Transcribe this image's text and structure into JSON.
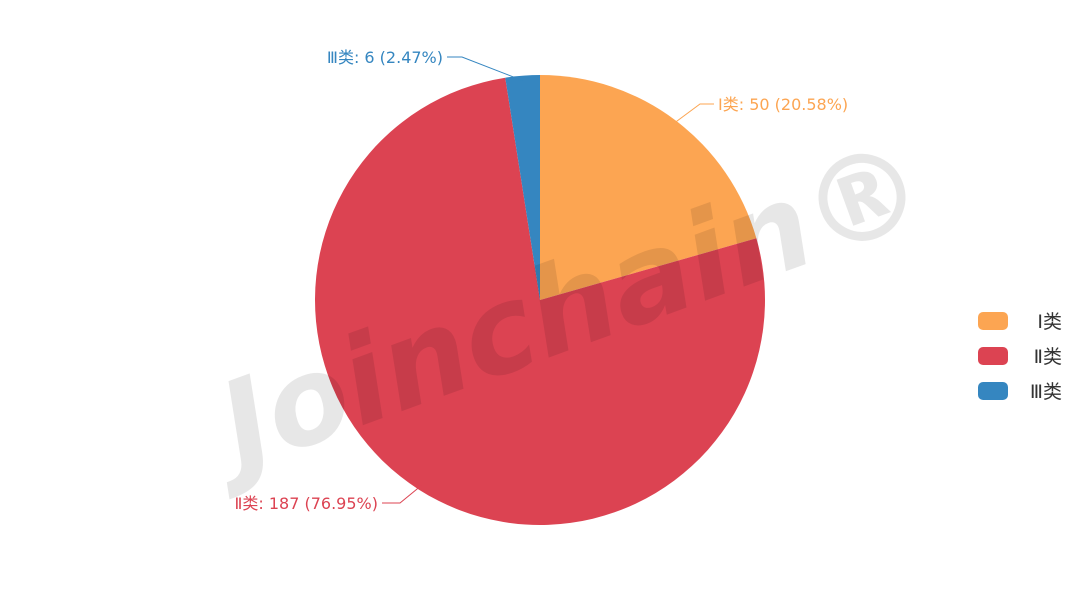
{
  "watermark": "Joinchain®",
  "chart_data": {
    "type": "pie",
    "title": "",
    "categories": [
      "Ⅰ类",
      "Ⅱ类",
      "Ⅲ类"
    ],
    "values": [
      50,
      187,
      6
    ],
    "percentages": [
      20.58,
      76.95,
      2.47
    ],
    "labels": [
      "Ⅰ类: 50 (20.58%)",
      "Ⅱ类: 187 (76.95%)",
      "Ⅲ类: 6 (2.47%)"
    ],
    "colors": [
      "#FCA552",
      "#DC4352",
      "#3586C0"
    ],
    "start_angle": "top, clockwise",
    "legend": {
      "position": "right",
      "items": [
        "Ⅰ类",
        "Ⅱ类",
        "Ⅲ类"
      ]
    }
  }
}
